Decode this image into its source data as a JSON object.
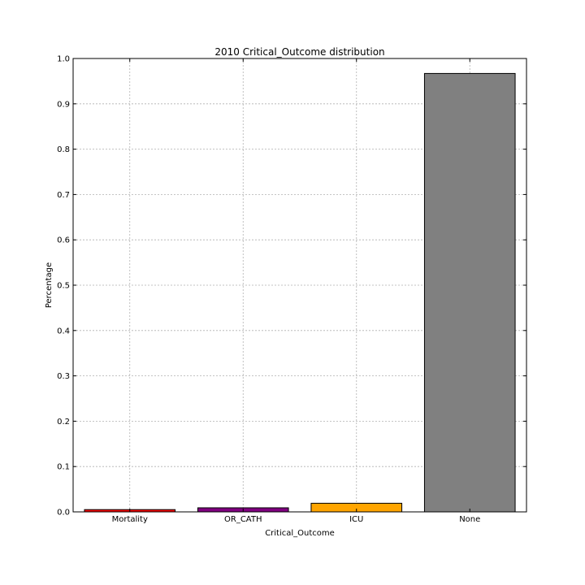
{
  "chart_data": {
    "type": "bar",
    "title": "2010 Critical_Outcome distribution",
    "xlabel": "Critical_Outcome",
    "ylabel": "Percentage",
    "categories": [
      "Mortality",
      "OR_CATH",
      "ICU",
      "None"
    ],
    "values": [
      0.005,
      0.009,
      0.019,
      0.967
    ],
    "colors": [
      "#ff0000",
      "#800080",
      "#ffa500",
      "#808080"
    ],
    "ylim": [
      0.0,
      1.0
    ],
    "yticks": [
      "0.0",
      "0.1",
      "0.2",
      "0.3",
      "0.4",
      "0.5",
      "0.6",
      "0.7",
      "0.8",
      "0.9",
      "1.0"
    ],
    "grid": true
  }
}
